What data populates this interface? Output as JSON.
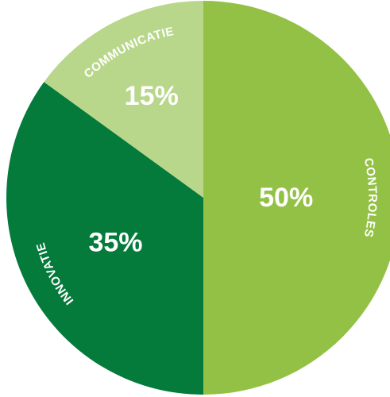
{
  "chart_data": {
    "type": "pie",
    "title": "",
    "slices": [
      {
        "label": "CONTROLES",
        "value": 50,
        "value_label": "50%",
        "color": "#93c145"
      },
      {
        "label": "INNOVATIE",
        "value": 35,
        "value_label": "35%",
        "color": "#047a3b"
      },
      {
        "label": "COMMUNICATIE",
        "value": 15,
        "value_label": "15%",
        "color": "#b8d78b"
      }
    ],
    "start": "top",
    "direction": "clockwise",
    "legend": "none"
  }
}
